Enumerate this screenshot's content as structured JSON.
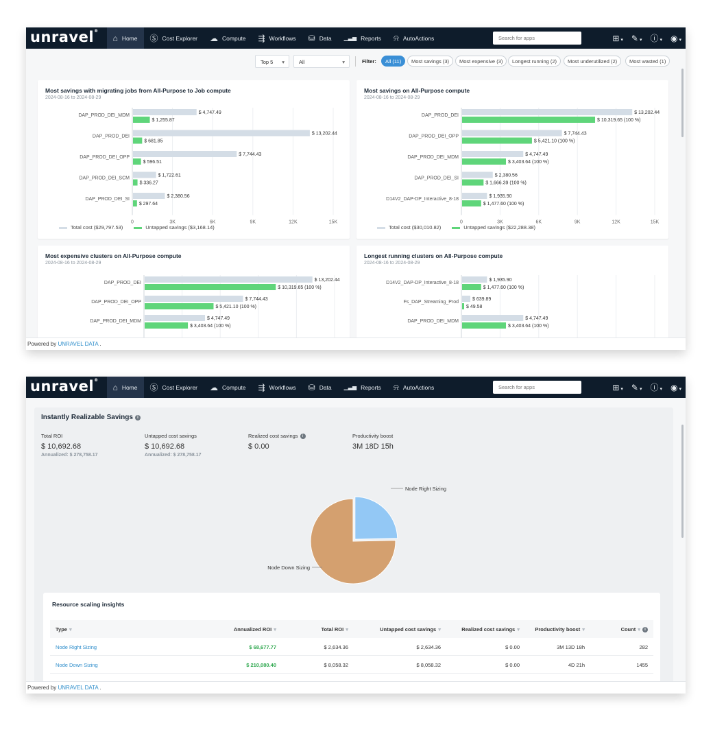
{
  "nav": {
    "logo": "unravel",
    "items": [
      {
        "label": "Home",
        "icon": "⌂"
      },
      {
        "label": "Cost Explorer",
        "icon": "Ⓢ"
      },
      {
        "label": "Compute",
        "icon": "☁"
      },
      {
        "label": "Workflows",
        "icon": "⇶"
      },
      {
        "label": "Data",
        "icon": "⛁"
      },
      {
        "label": "Reports",
        "icon": "▁▃▅"
      },
      {
        "label": "AutoActions",
        "icon": "⍾"
      }
    ],
    "search_placeholder": "Search for apps",
    "right_icons": [
      "grid-icon",
      "pencil-icon",
      "help-icon",
      "user-icon"
    ]
  },
  "filters": {
    "top": "Top 5",
    "scope": "All",
    "label": "Filter:",
    "chips": [
      "All (11)",
      "Most savings (3)",
      "Most expensive (3)",
      "Longest running (2)",
      "Most underutilized (2)",
      "Most wasted (1)"
    ]
  },
  "footer": {
    "prefix": "Powered by ",
    "brand": "UNRAVEL DATA",
    "suffix": " ."
  },
  "colors": {
    "total": "#d4dde6",
    "savings": "#5fd57a",
    "accent": "#3a8fd6",
    "pie_down": "#d4a06f",
    "pie_right": "#93c8f5"
  },
  "chart_data": [
    {
      "type": "bar",
      "title": "Most savings with migrating jobs from All-Purpose to Job compute",
      "subtitle": "2024-08-16 to 2024-08-29",
      "categories": [
        "DAP_PROD_DEI_MDM",
        "DAP_PROD_DEI",
        "DAP_PROD_DEI_OPP",
        "DAP_PROD_DEI_SCM",
        "DAP_PROD_DEI_SI"
      ],
      "series": [
        {
          "name": "Total cost ($29,797.53)",
          "values": [
            4747.49,
            13202.44,
            7744.43,
            1722.61,
            2380.56
          ],
          "labels": [
            "$ 4,747.49",
            "$ 13,202.44",
            "$ 7,744.43",
            "$ 1,722.61",
            "$ 2,380.56"
          ]
        },
        {
          "name": "Untapped savings ($3,168.14)",
          "values": [
            1255.87,
            681.85,
            596.51,
            336.27,
            297.64
          ],
          "labels": [
            "$ 1,255.87",
            "$ 681.85",
            "$ 596.51",
            "$ 336.27",
            "$ 297.64"
          ]
        }
      ],
      "xlim": [
        0,
        15000
      ],
      "xticks": [
        "0",
        "3K",
        "6K",
        "9K",
        "12K",
        "15K"
      ]
    },
    {
      "type": "bar",
      "title": "Most savings on All-Purpose compute",
      "subtitle": "2024-08-16 to 2024-08-29",
      "categories": [
        "DAP_PROD_DEI",
        "DAP_PROD_DEI_OPP",
        "DAP_PROD_DEI_MDM",
        "DAP_PROD_DEI_SI",
        "D14V2_DAP-DP_Interactive_8-18"
      ],
      "series": [
        {
          "name": "Total cost ($30,010.82)",
          "values": [
            13202.44,
            7744.43,
            4747.49,
            2380.56,
            1935.9
          ],
          "labels": [
            "$ 13,202.44",
            "$ 7,744.43",
            "$ 4,747.49",
            "$ 2,380.56",
            "$ 1,935.90"
          ]
        },
        {
          "name": "Untapped savings ($22,288.38)",
          "values": [
            10319.65,
            5421.1,
            3403.64,
            1666.39,
            1477.6
          ],
          "labels": [
            "$ 10,319.65 (100 %)",
            "$ 5,421.10 (100 %)",
            "$ 3,403.64 (100 %)",
            "$ 1,666.39 (100 %)",
            "$ 1,477.60 (100 %)"
          ]
        }
      ],
      "xlim": [
        0,
        15000
      ],
      "xticks": [
        "0",
        "3K",
        "6K",
        "9K",
        "12K",
        "15K"
      ]
    },
    {
      "type": "bar",
      "title": "Most expensive clusters on All-Purpose compute",
      "subtitle": "2024-08-16 to 2024-08-29",
      "categories": [
        "DAP_PROD_DEI",
        "DAP_PROD_DEI_OPP",
        "DAP_PROD_DEI_MDM"
      ],
      "series": [
        {
          "values": [
            13202.44,
            7744.43,
            4747.49
          ],
          "labels": [
            "$ 13,202.44",
            "$ 7,744.43",
            "$ 4,747.49"
          ]
        },
        {
          "values": [
            10319.65,
            5421.1,
            3403.64
          ],
          "labels": [
            "$ 10,319.65 (100 %)",
            "$ 5,421.10 (100 %)",
            "$ 3,403.64 (100 %)"
          ]
        }
      ],
      "xlim": [
        0,
        15000
      ]
    },
    {
      "type": "bar",
      "title": "Longest running clusters on All-Purpose compute",
      "subtitle": "2024-08-16 to 2024-08-29",
      "categories": [
        "D14V2_DAP-DP_Interactive_8-18",
        "Fs_DAP_Streaming_Prod",
        "DAP_PROD_DEI_MDM"
      ],
      "series": [
        {
          "values": [
            1935.9,
            639.89,
            4747.49
          ],
          "labels": [
            "$ 1,935.90",
            "$ 639.89",
            "$ 4,747.49"
          ]
        },
        {
          "values": [
            1477.6,
            49.58,
            3403.64
          ],
          "labels": [
            "$ 1,477.60 (100 %)",
            "$ 49.58",
            "$ 3,403.64 (100 %)"
          ]
        }
      ],
      "xlim": [
        0,
        15000
      ]
    },
    {
      "type": "pie",
      "slices": [
        {
          "label": "Node Right Sizing",
          "value": 2634.36
        },
        {
          "label": "Node Down Sizing",
          "value": 8058.32
        }
      ]
    }
  ],
  "savings": {
    "title": "Instantly Realizable Savings",
    "metrics": [
      {
        "label": "Total ROI",
        "value": "$ 10,692.68",
        "annual": "Annualized: $ 278,758.17"
      },
      {
        "label": "Untapped cost savings",
        "value": "$ 10,692.68",
        "annual": "Annualized: $ 278,758.17"
      },
      {
        "label": "Realized cost savings",
        "value": "$ 0.00",
        "annual": ""
      },
      {
        "label": "Productivity boost",
        "value": "3M 18D 15h",
        "annual": ""
      }
    ]
  },
  "insights": {
    "title": "Resource scaling insights",
    "columns": [
      "Type",
      "Annualized ROI",
      "Total ROI",
      "Untapped cost savings",
      "Realized cost savings",
      "Productivity boost",
      "Count"
    ],
    "rows": [
      [
        "Node Right Sizing",
        "$ 68,677.77",
        "$ 2,634.36",
        "$ 2,634.36",
        "$ 0.00",
        "3M 13D 18h",
        "282"
      ],
      [
        "Node Down Sizing",
        "$ 210,080.40",
        "$ 8,058.32",
        "$ 8,058.32",
        "$ 0.00",
        "4D 21h",
        "1455"
      ]
    ]
  }
}
